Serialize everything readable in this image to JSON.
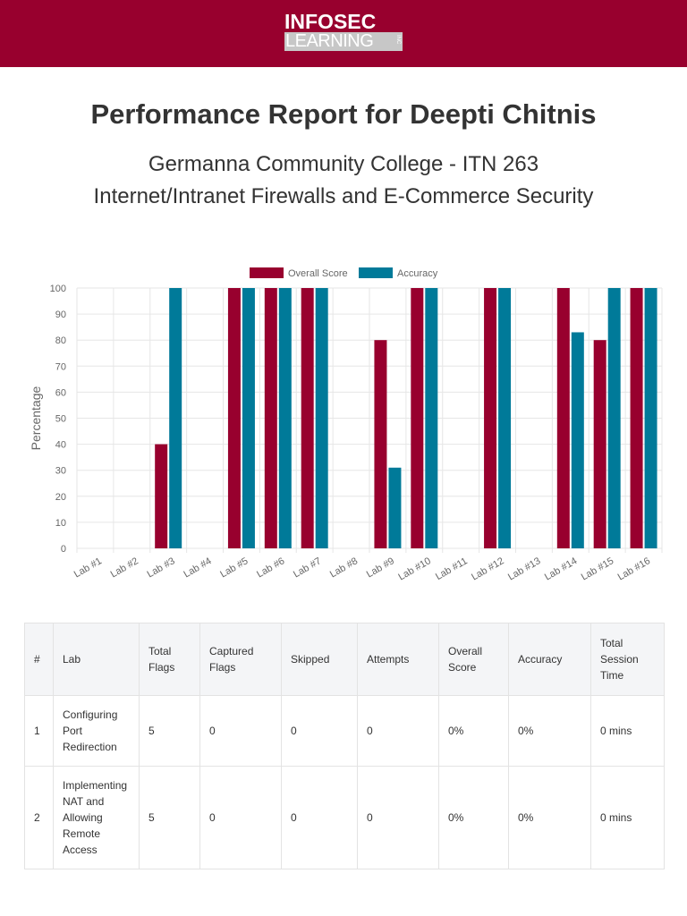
{
  "brand": {
    "logo_line1": "INFOSEC",
    "logo_line2": "LEARNING",
    "logo_inc": "INC",
    "colors": {
      "banner": "#98002e",
      "overall_score": "#98002e",
      "accuracy": "#007a99"
    }
  },
  "report": {
    "title": "Performance Report for Deepti Chitnis",
    "subtitle_line1": "Germanna Community College - ITN 263",
    "subtitle_line2": "Internet/Intranet Firewalls and E-Commerce Security"
  },
  "chart_data": {
    "type": "bar",
    "title": "",
    "xlabel": "",
    "ylabel": "Percentage",
    "ylim": [
      0,
      100
    ],
    "yticks": [
      0,
      10,
      20,
      30,
      40,
      50,
      60,
      70,
      80,
      90,
      100
    ],
    "grid": true,
    "legend_position": "top-center",
    "categories": [
      "Lab #1",
      "Lab #2",
      "Lab #3",
      "Lab #4",
      "Lab #5",
      "Lab #6",
      "Lab #7",
      "Lab #8",
      "Lab #9",
      "Lab #10",
      "Lab #11",
      "Lab #12",
      "Lab #13",
      "Lab #14",
      "Lab #15",
      "Lab #16"
    ],
    "series": [
      {
        "name": "Overall Score",
        "color": "#98002e",
        "values": [
          0,
          0,
          40,
          0,
          100,
          100,
          100,
          0,
          80,
          100,
          0,
          100,
          0,
          100,
          80,
          100
        ]
      },
      {
        "name": "Accuracy",
        "color": "#007a99",
        "values": [
          0,
          0,
          100,
          0,
          100,
          100,
          100,
          0,
          31,
          100,
          0,
          100,
          0,
          83,
          100,
          100
        ]
      }
    ]
  },
  "table": {
    "headers": [
      "#",
      "Lab",
      "Total Flags",
      "Captured Flags",
      "Skipped",
      "Attempts",
      "Overall Score",
      "Accuracy",
      "Total Session Time"
    ],
    "rows": [
      [
        "1",
        "Configuring Port Redirection",
        "5",
        "0",
        "0",
        "0",
        "0%",
        "0%",
        "0 mins"
      ],
      [
        "2",
        "Implementing NAT and Allowing Remote Access",
        "5",
        "0",
        "0",
        "0",
        "0%",
        "0%",
        "0 mins"
      ]
    ]
  }
}
